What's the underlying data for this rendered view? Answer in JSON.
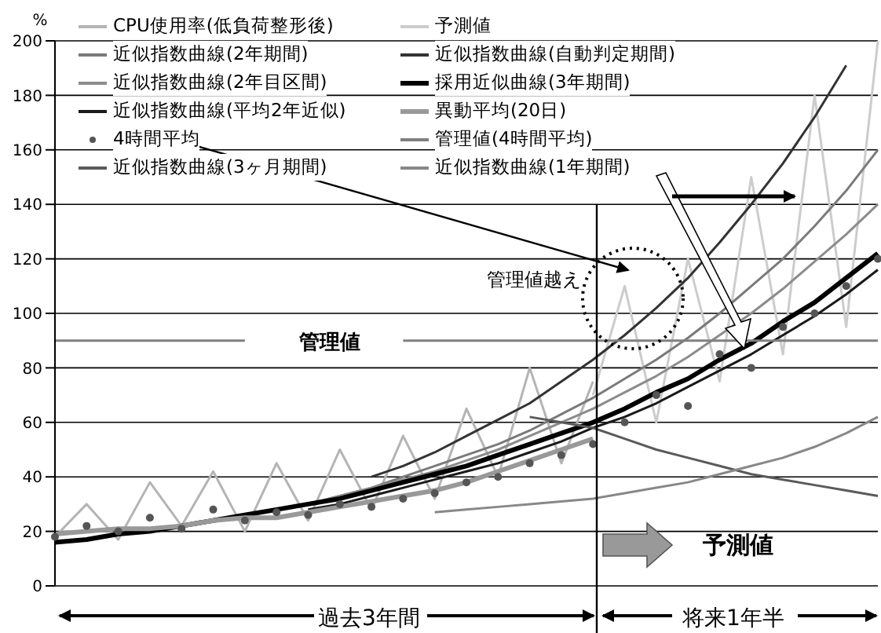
{
  "chart_data": {
    "type": "line",
    "ylabel": "%",
    "categories": [
      null,
      null,
      null,
      null,
      null,
      null,
      null,
      null,
      null,
      null,
      null,
      null,
      null,
      null,
      null,
      null,
      null,
      null,
      null,
      null,
      null,
      null,
      null,
      null,
      null,
      null,
      null
    ],
    "series": [
      {
        "name": "CPU使用率(低負荷整形後)",
        "color": "#b4b4b4",
        "values": [
          18,
          30,
          17,
          38,
          22,
          42,
          20,
          45,
          24,
          50,
          28,
          55,
          32,
          65,
          40,
          80,
          45,
          75,
          null,
          null,
          null,
          null,
          null,
          null,
          null,
          null,
          null
        ]
      },
      {
        "name": "予測値",
        "color": "#cccccc",
        "values": [
          null,
          null,
          null,
          null,
          null,
          null,
          null,
          null,
          null,
          null,
          null,
          null,
          null,
          null,
          null,
          null,
          null,
          70,
          110,
          60,
          120,
          75,
          150,
          85,
          180,
          95,
          200
        ]
      },
      {
        "name": "近似指数曲線(2年期間)",
        "color": "#7a7a7a",
        "values": [
          null,
          null,
          null,
          null,
          null,
          null,
          null,
          null,
          30,
          33,
          36,
          40,
          44,
          48,
          52,
          57,
          63,
          69,
          76,
          83,
          91,
          100,
          110,
          120,
          132,
          145,
          160
        ]
      },
      {
        "name": "近似指数曲線(自動判定期間)",
        "color": "#333333",
        "values": [
          null,
          null,
          null,
          null,
          null,
          null,
          null,
          null,
          null,
          null,
          40,
          44,
          49,
          55,
          61,
          67,
          75,
          83,
          92,
          102,
          113,
          126,
          140,
          155,
          172,
          191,
          null
        ]
      },
      {
        "name": "近似指数曲線(2年目区間)",
        "color": "#8c8c8c",
        "values": [
          null,
          null,
          null,
          null,
          null,
          null,
          null,
          null,
          30,
          33,
          36,
          39,
          42,
          46,
          50,
          55,
          60,
          65,
          71,
          77,
          84,
          92,
          100,
          109,
          119,
          129,
          140
        ]
      },
      {
        "name": "採用近似曲線(3年期間)",
        "color": "#000000",
        "values": [
          16,
          17,
          19,
          20,
          22,
          24,
          26,
          28,
          30,
          32,
          35,
          38,
          41,
          44,
          48,
          52,
          56,
          60,
          65,
          71,
          76,
          83,
          89,
          97,
          104,
          113,
          122
        ]
      },
      {
        "name": "近似指数曲線(平均2年近似)",
        "color": "#1a1a1a",
        "values": [
          null,
          null,
          null,
          null,
          null,
          null,
          null,
          null,
          28,
          30,
          33,
          36,
          39,
          42,
          45,
          49,
          53,
          58,
          62,
          67,
          73,
          79,
          85,
          92,
          99,
          107,
          116
        ]
      },
      {
        "name": "異動平均(20日)",
        "color": "#999999",
        "values": [
          19,
          20,
          21,
          21,
          22,
          24,
          25,
          25,
          27,
          29,
          31,
          33,
          35,
          38,
          42,
          46,
          50,
          54,
          null,
          null,
          null,
          null,
          null,
          null,
          null,
          null,
          null
        ]
      },
      {
        "name": "4時間平均",
        "type": "scatter",
        "color": "#555555",
        "values": [
          18,
          22,
          20,
          25,
          21,
          28,
          24,
          27,
          26,
          30,
          29,
          32,
          34,
          38,
          40,
          45,
          48,
          52,
          60,
          70,
          66,
          85,
          80,
          95,
          100,
          110,
          120
        ]
      },
      {
        "name": "管理値(4時間平均)",
        "color": "#808080",
        "values": [
          90,
          90,
          90,
          90,
          90,
          90,
          90,
          null,
          null,
          null,
          null,
          90,
          90,
          90,
          90,
          90,
          90,
          90,
          90,
          90,
          90,
          90,
          90,
          90,
          90,
          90,
          90
        ]
      },
      {
        "name": "近似指数曲線(3ヶ月期間)",
        "color": "#5a5a5a",
        "values": [
          null,
          null,
          null,
          null,
          null,
          null,
          null,
          null,
          null,
          null,
          null,
          null,
          null,
          null,
          null,
          62,
          60,
          58,
          54,
          50,
          47,
          44,
          41,
          39,
          37,
          35,
          33
        ]
      },
      {
        "name": "近似指数曲線(1年期間)",
        "color": "#888888",
        "values": [
          null,
          null,
          null,
          null,
          null,
          null,
          null,
          null,
          null,
          null,
          null,
          null,
          27,
          28,
          29,
          30,
          31,
          32,
          34,
          36,
          38,
          41,
          44,
          47,
          51,
          56,
          62
        ]
      }
    ],
    "ylim": [
      0,
      200
    ],
    "yticks": [
      0,
      20,
      40,
      60,
      80,
      100,
      120,
      140,
      160,
      180,
      200
    ],
    "grid": "y",
    "legend": "top left",
    "tick_labels": "y",
    "annotations": [
      "管理値",
      "管理値越え",
      "予測値",
      "過去3年間",
      "将来1年半"
    ]
  }
}
